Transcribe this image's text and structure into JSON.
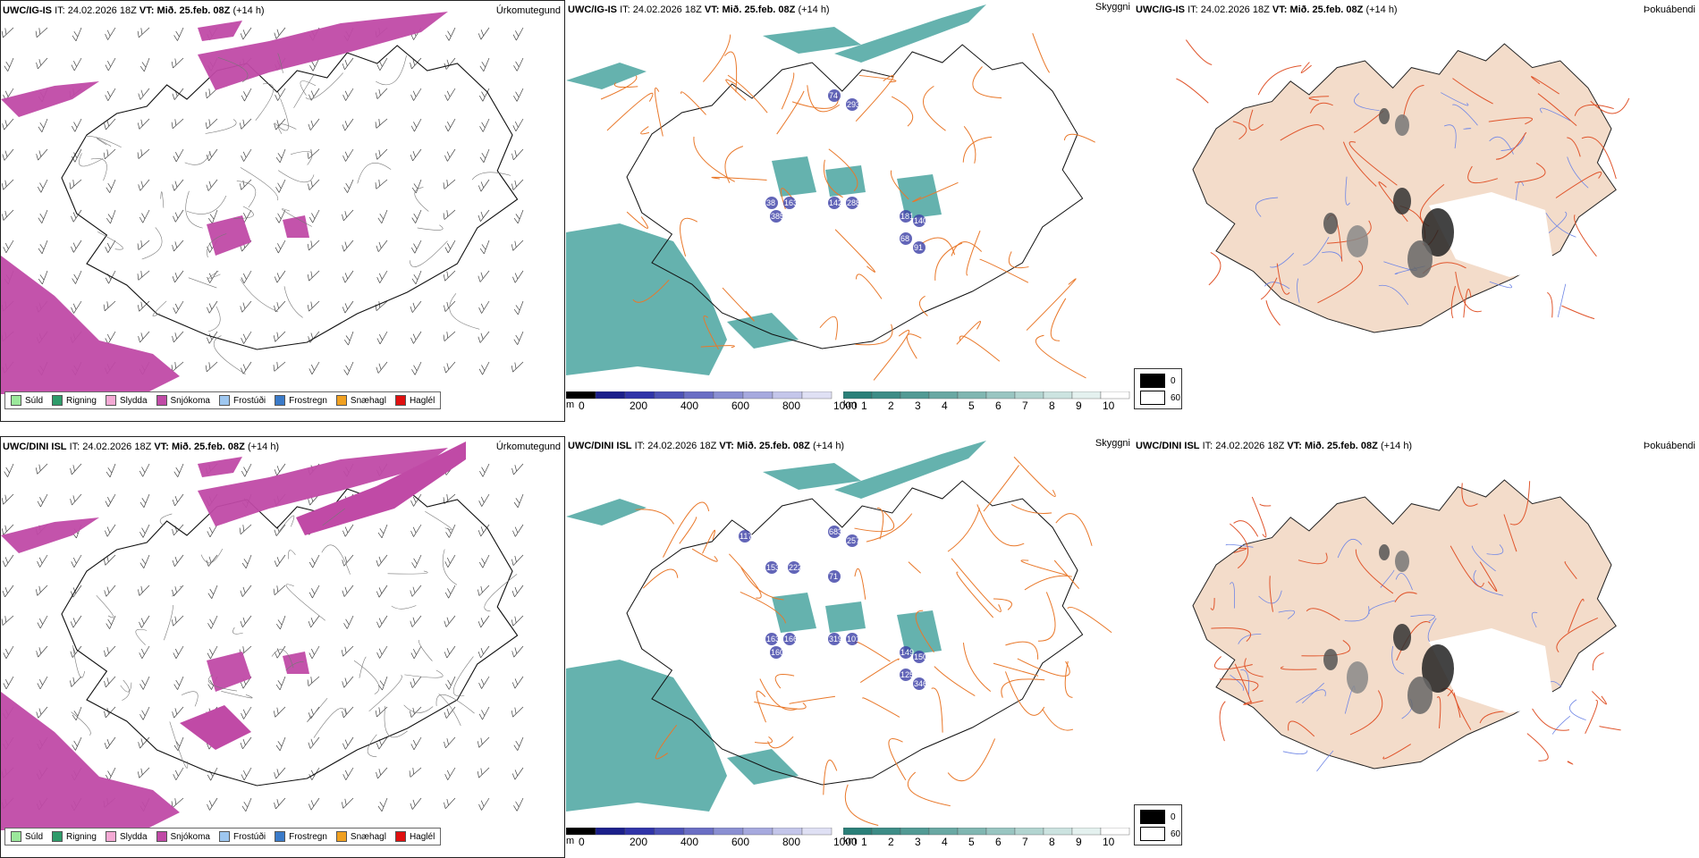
{
  "rows": [
    {
      "model": "UWC/IG-IS",
      "it_label": "IT:",
      "it_value": "24.02.2026 18Z",
      "vt_label": "VT:",
      "vt_value": "Mið. 25.feb. 08Z",
      "lead": "(+14 h)",
      "vis_labels": [
        "74",
        "293",
        "38",
        "163",
        "385",
        "142",
        "288",
        "181",
        "140",
        "68",
        "91"
      ]
    },
    {
      "model": "UWC/DINI ISL",
      "it_label": "IT:",
      "it_value": "24.02.2026 18Z",
      "vt_label": "VT:",
      "vt_value": "Mið. 25.feb. 08Z",
      "lead": "(+14 h)",
      "vis_labels": [
        "683",
        "257",
        "163",
        "166",
        "160",
        "319",
        "1018",
        "149",
        "150",
        "125",
        "346",
        "117",
        "153",
        "222",
        "71"
      ]
    }
  ],
  "panel_titles": {
    "precip": "Úrkomutegund",
    "visibility": "Skyggni",
    "fog": "Þokuábendi"
  },
  "precip_legend": [
    {
      "label": "Súld",
      "color": "#9be89b"
    },
    {
      "label": "Rigning",
      "color": "#2e9b6a"
    },
    {
      "label": "Slydda",
      "color": "#f4a9d4"
    },
    {
      "label": "Snjókoma",
      "color": "#c04aa6"
    },
    {
      "label": "Frostúði",
      "color": "#9ec7f0"
    },
    {
      "label": "Frostregn",
      "color": "#3a7ac8"
    },
    {
      "label": "Snæhagl",
      "color": "#f0a020"
    },
    {
      "label": "Haglél",
      "color": "#e01010"
    }
  ],
  "ceiling_bar": {
    "unit": "m",
    "ticks": [
      "0",
      "200",
      "400",
      "600",
      "800",
      "1000"
    ]
  },
  "visibility_bar": {
    "unit": "km",
    "ticks": [
      "1",
      "2",
      "3",
      "4",
      "5",
      "6",
      "7",
      "8",
      "9",
      "10"
    ]
  },
  "fog_legend": {
    "low": "0",
    "high": "60"
  },
  "colors": {
    "snow": "#c04aa6",
    "teal": "#4aa5a0",
    "roads": "#e9782a",
    "land_fog": "#f3dcca",
    "rivers": "#6f86e6"
  }
}
